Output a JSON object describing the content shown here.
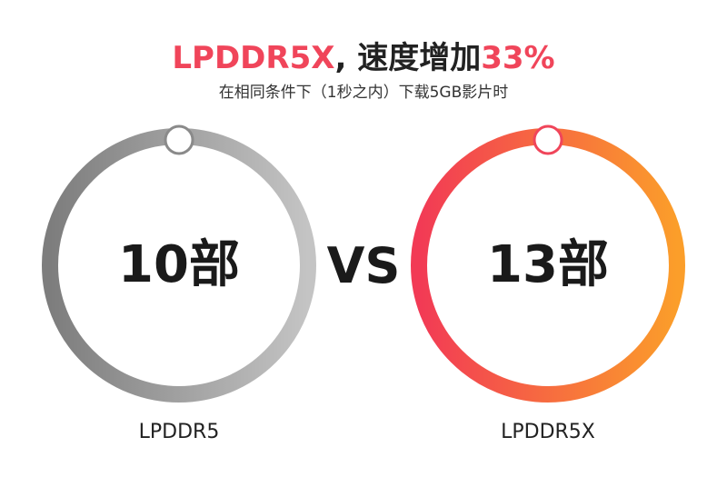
{
  "headline": {
    "part1": "LPDDR5X",
    "part2": ", 速度增加",
    "part3": "33%"
  },
  "subtitle": "在相同条件下（1秒之内）下载5GB影片时",
  "left": {
    "value": "10部",
    "label": "LPDDR5",
    "ring_color_start": "#7d7d7d",
    "ring_color_end": "#c4c4c4"
  },
  "vs": "VS",
  "right": {
    "value": "13部",
    "label": "LPDDR5X",
    "ring_color_start": "#f23a55",
    "ring_color_end": "#fb9e2a"
  },
  "colors": {
    "accent": "#f0455a",
    "text": "#222222"
  }
}
